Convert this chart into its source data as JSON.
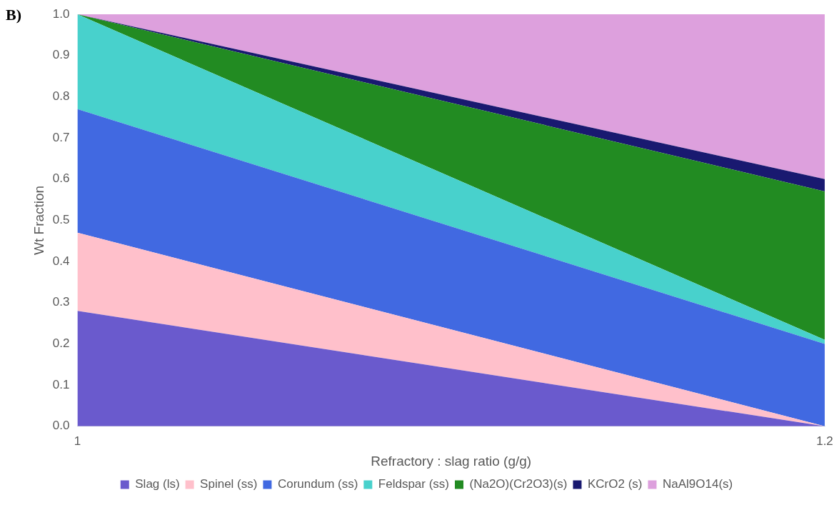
{
  "chart_data": {
    "type": "area",
    "stacked": true,
    "categories": [
      "1",
      "1.2"
    ],
    "xlabel": "Refractory : slag ratio (g/g)",
    "ylabel": "Wt Fraction",
    "annotations": [
      "B)"
    ],
    "ylim": [
      0,
      1
    ],
    "yticks": [
      {
        "value": 0,
        "label": "0.0"
      },
      {
        "value": 0.1,
        "label": "0.1"
      },
      {
        "value": 0.2,
        "label": "0.2"
      },
      {
        "value": 0.3,
        "label": "0.3"
      },
      {
        "value": 0.4,
        "label": "0.4"
      },
      {
        "value": 0.5,
        "label": "0.5"
      },
      {
        "value": 0.6,
        "label": "0.6"
      },
      {
        "value": 0.7,
        "label": "0.7"
      },
      {
        "value": 0.8,
        "label": "0.8"
      },
      {
        "value": 0.9,
        "label": "0.9"
      },
      {
        "value": 1,
        "label": "1.0"
      }
    ],
    "legend": "bottom",
    "series": [
      {
        "name": "Slag (ls)",
        "color": "#6a5acd",
        "values": [
          0.28,
          0
        ]
      },
      {
        "name": "Spinel (ss)",
        "color": "#ffc0cb",
        "values": [
          0.19,
          0
        ]
      },
      {
        "name": "Corundum (ss)",
        "color": "#4169e1",
        "values": [
          0.3,
          0.2
        ]
      },
      {
        "name": "Feldspar (ss)",
        "color": "#48d1cc",
        "values": [
          0.23,
          0.01
        ]
      },
      {
        "name": "(Na2O)(Cr2O3)(s)",
        "color": "#228b22",
        "values": [
          0,
          0.36
        ]
      },
      {
        "name": "KCrO2 (s)",
        "color": "#191970",
        "values": [
          0,
          0.03
        ]
      },
      {
        "name": "NaAl9O14(s)",
        "color": "#dda0dd",
        "values": [
          0,
          0.4
        ]
      }
    ]
  }
}
